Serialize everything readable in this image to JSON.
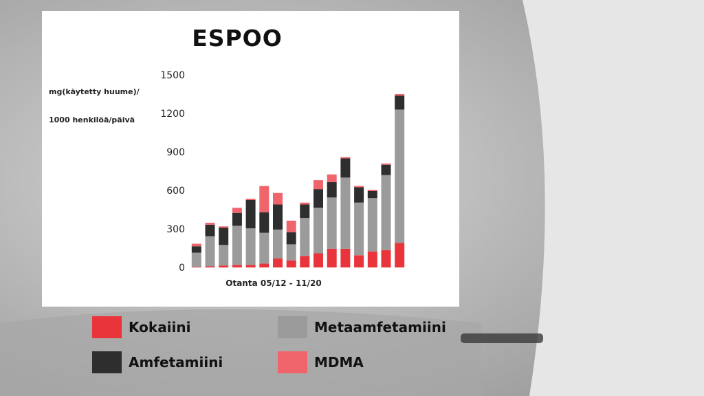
{
  "chart_data": {
    "type": "bar",
    "stacked": true,
    "title": "ESPOO",
    "ylabel_line1": "mg(käytetty huume)/",
    "ylabel_line2": "1000 henkilöä/päivä",
    "xlabel": "Otanta 05/12 - 11/20",
    "ylim": [
      0,
      1500
    ],
    "yticks": [
      0,
      300,
      600,
      900,
      1200,
      1500
    ],
    "grid": false,
    "legend_position": "bottom",
    "series": [
      {
        "name": "Kokaiini",
        "color": "#e8343a",
        "values": [
          5,
          8,
          15,
          20,
          20,
          30,
          70,
          55,
          90,
          110,
          145,
          145,
          95,
          125,
          135,
          190
        ]
      },
      {
        "name": "Metaamfetamiini",
        "color": "#9b9b9b",
        "values": [
          110,
          235,
          160,
          305,
          285,
          240,
          225,
          125,
          295,
          355,
          400,
          555,
          410,
          415,
          585,
          1040
        ]
      },
      {
        "name": "Amfetamiini",
        "color": "#2e2e2e",
        "values": [
          50,
          90,
          135,
          100,
          220,
          160,
          195,
          95,
          105,
          145,
          120,
          150,
          120,
          55,
          80,
          110
        ]
      },
      {
        "name": "MDMA",
        "color": "#f0656b",
        "values": [
          20,
          15,
          10,
          40,
          10,
          205,
          90,
          90,
          15,
          70,
          60,
          10,
          10,
          10,
          10,
          10
        ]
      }
    ]
  }
}
